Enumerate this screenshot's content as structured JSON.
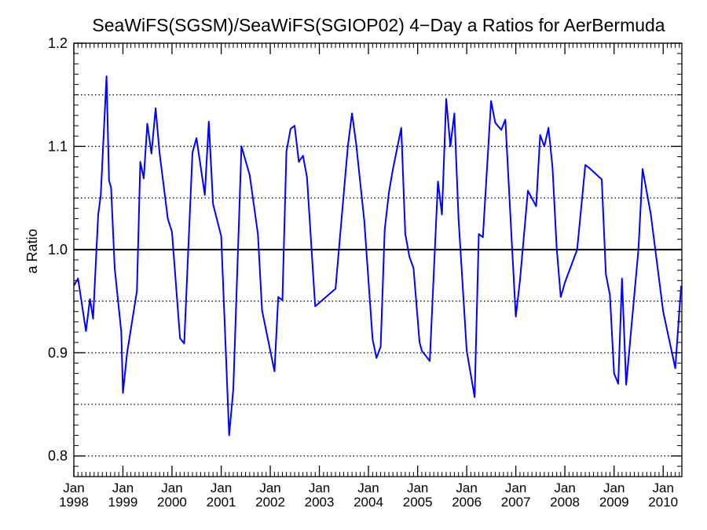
{
  "chart_data": {
    "type": "line",
    "title": "SeaWiFS(SGSM)/SeaWiFS(SGIOP02) 4−Day a Ratios for AerBermuda",
    "xlabel": "",
    "ylabel": "a Ratio",
    "x_range": [
      "1998-01-01",
      "2010-05-20"
    ],
    "ylim": [
      0.78,
      1.2
    ],
    "y_ticks": [
      0.8,
      0.9,
      1.0,
      1.1,
      1.2
    ],
    "y_tick_labels": [
      "0.8",
      "0.9",
      "1.0",
      "1.1",
      "1.2"
    ],
    "x_ticks": [
      {
        "date": "1998-01-01",
        "month": "Jan",
        "year": "1998"
      },
      {
        "date": "1999-01-01",
        "month": "Jan",
        "year": "1999"
      },
      {
        "date": "2000-01-01",
        "month": "Jan",
        "year": "2000"
      },
      {
        "date": "2001-01-01",
        "month": "Jan",
        "year": "2001"
      },
      {
        "date": "2002-01-01",
        "month": "Jan",
        "year": "2002"
      },
      {
        "date": "2003-01-01",
        "month": "Jan",
        "year": "2003"
      },
      {
        "date": "2004-01-01",
        "month": "Jan",
        "year": "2004"
      },
      {
        "date": "2005-01-01",
        "month": "Jan",
        "year": "2005"
      },
      {
        "date": "2006-01-01",
        "month": "Jan",
        "year": "2006"
      },
      {
        "date": "2007-01-01",
        "month": "Jan",
        "year": "2007"
      },
      {
        "date": "2008-01-01",
        "month": "Jan",
        "year": "2008"
      },
      {
        "date": "2009-01-01",
        "month": "Jan",
        "year": "2009"
      },
      {
        "date": "2010-01-01",
        "month": "Jan",
        "year": "2010"
      }
    ],
    "grid": "dotted horizontal",
    "reference_line": 1.0,
    "colors": {
      "series": "#0000ff",
      "reference": "#000000",
      "grid": "#000000"
    },
    "series": [
      {
        "x": [
          "1998-01-01",
          "1998-02-01",
          "1998-04-01",
          "1998-05-01",
          "1998-05-24",
          "1998-07-01",
          "1998-07-20",
          "1998-09-01",
          "1998-09-20",
          "1998-10-05",
          "1998-11-01",
          "1998-12-20",
          "1999-01-01",
          "1999-02-01",
          "1999-04-15",
          "1999-05-10",
          "1999-06-05",
          "1999-07-01",
          "1999-08-01",
          "1999-09-01",
          "1999-10-01",
          "1999-12-01",
          "2000-01-01",
          "2000-03-01",
          "2000-04-01",
          "2000-06-01",
          "2000-07-01",
          "2000-09-01",
          "2000-10-01",
          "2000-11-01",
          "2001-01-01",
          "2001-03-01",
          "2001-04-01",
          "2001-06-01",
          "2001-08-01",
          "2001-10-01",
          "2001-11-01",
          "2002-02-01",
          "2002-03-01",
          "2002-04-01",
          "2002-05-01",
          "2002-06-01",
          "2002-07-01",
          "2002-08-01",
          "2002-09-01",
          "2002-10-01",
          "2002-12-01",
          "2003-05-01",
          "2003-08-01",
          "2003-09-01",
          "2003-10-01",
          "2003-12-01",
          "2004-02-01",
          "2004-03-01",
          "2004-04-01",
          "2004-05-01",
          "2004-06-01",
          "2004-07-01",
          "2004-09-01",
          "2004-10-01",
          "2004-11-01",
          "2004-12-01",
          "2005-01-15",
          "2005-02-01",
          "2005-04-01",
          "2005-06-01",
          "2005-07-01",
          "2005-08-01",
          "2005-09-01",
          "2005-10-01",
          "2005-11-01",
          "2006-01-01",
          "2006-03-01",
          "2006-04-01",
          "2006-05-01",
          "2006-07-01",
          "2006-08-01",
          "2006-09-15",
          "2006-10-15",
          "2006-12-01",
          "2007-01-01",
          "2007-02-01",
          "2007-04-01",
          "2007-06-01",
          "2007-07-01",
          "2007-08-01",
          "2007-09-01",
          "2007-10-01",
          "2007-11-01",
          "2007-12-01",
          "2008-01-01",
          "2008-04-01",
          "2008-06-01",
          "2008-07-01",
          "2008-10-01",
          "2008-11-01",
          "2008-12-01",
          "2009-01-01",
          "2009-02-01",
          "2009-03-01",
          "2009-04-01",
          "2009-07-01",
          "2009-08-01",
          "2009-10-01",
          "2010-01-01",
          "2010-04-01",
          "2010-05-15"
        ],
        "values": [
          0.965,
          0.972,
          0.921,
          0.952,
          0.933,
          1.034,
          1.052,
          1.168,
          1.067,
          1.06,
          0.982,
          0.92,
          0.861,
          0.9,
          0.96,
          1.085,
          1.069,
          1.122,
          1.093,
          1.137,
          1.093,
          1.03,
          1.017,
          0.914,
          0.909,
          1.094,
          1.108,
          1.053,
          1.124,
          1.044,
          1.013,
          0.82,
          0.865,
          1.1,
          1.072,
          1.015,
          0.941,
          0.882,
          0.954,
          0.951,
          1.095,
          1.117,
          1.12,
          1.085,
          1.091,
          1.07,
          0.945,
          0.962,
          1.1,
          1.132,
          1.103,
          1.028,
          0.913,
          0.895,
          0.906,
          1.019,
          1.055,
          1.078,
          1.118,
          1.015,
          0.993,
          0.982,
          0.91,
          0.902,
          0.892,
          1.066,
          1.034,
          1.146,
          1.1,
          1.132,
          1.03,
          0.902,
          0.857,
          1.015,
          1.012,
          1.144,
          1.123,
          1.116,
          1.126,
          1.01,
          0.935,
          0.97,
          1.057,
          1.042,
          1.111,
          1.1,
          1.118,
          1.08,
          1.002,
          0.954,
          0.968,
          1.0,
          1.082,
          1.079,
          1.068,
          0.976,
          0.956,
          0.88,
          0.87,
          0.972,
          0.869,
          1.0,
          1.078,
          1.034,
          0.94,
          0.885,
          0.965
        ]
      }
    ]
  }
}
